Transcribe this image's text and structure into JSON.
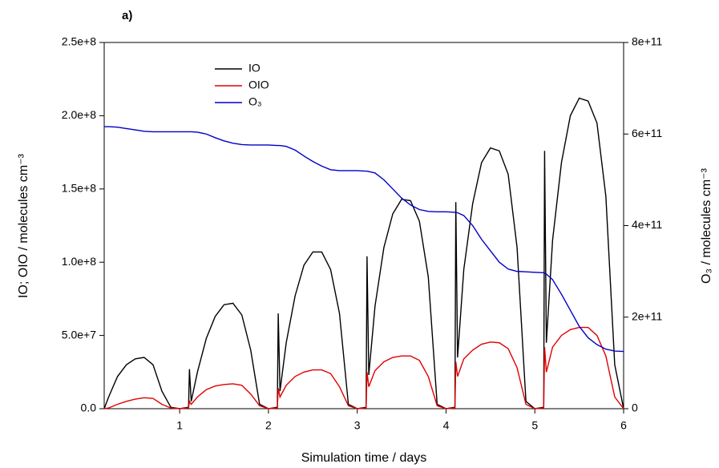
{
  "chart_data": {
    "type": "line",
    "title": "a)",
    "x_label": "Simulation time / days",
    "y_label": "IO; OIO / molecules cm⁻³",
    "y2_label": "O₃ / molecules cm⁻³",
    "xlim": [
      0.15,
      6
    ],
    "xticks": [
      1,
      2,
      3,
      4,
      5,
      6
    ],
    "ylim": [
      0,
      250000000
    ],
    "yticks": [
      {
        "value": 0,
        "label": "0.0"
      },
      {
        "value": 50000000,
        "label": "5.0e+7"
      },
      {
        "value": 100000000,
        "label": "1.0e+8"
      },
      {
        "value": 150000000,
        "label": "1.5e+8"
      },
      {
        "value": 200000000,
        "label": "2.0e+8"
      },
      {
        "value": 250000000,
        "label": "2.5e+8"
      }
    ],
    "y2lim": [
      0,
      800000000000
    ],
    "y2ticks": [
      0,
      {
        "value": 200000000000,
        "label": "2e+11"
      },
      {
        "value": 400000000000,
        "label": "4e+11"
      },
      {
        "value": 600000000000,
        "label": "6e+11"
      },
      {
        "value": 800000000000,
        "label": "8e+11"
      }
    ],
    "x": [
      0.15,
      0.2,
      0.3,
      0.4,
      0.5,
      0.6,
      0.7,
      0.8,
      0.9,
      1.0,
      1.1,
      1.11,
      1.13,
      1.2,
      1.3,
      1.4,
      1.5,
      1.6,
      1.7,
      1.8,
      1.9,
      2.0,
      2.1,
      2.11,
      2.13,
      2.2,
      2.3,
      2.4,
      2.5,
      2.6,
      2.7,
      2.8,
      2.9,
      3.0,
      3.1,
      3.11,
      3.13,
      3.2,
      3.3,
      3.4,
      3.5,
      3.6,
      3.7,
      3.8,
      3.9,
      4.0,
      4.1,
      4.11,
      4.13,
      4.2,
      4.3,
      4.4,
      4.5,
      4.6,
      4.7,
      4.8,
      4.9,
      5.0,
      5.1,
      5.11,
      5.13,
      5.2,
      5.3,
      5.4,
      5.5,
      5.6,
      5.7,
      5.8,
      5.9,
      6.0
    ],
    "series": [
      {
        "name": "IO",
        "color": "#000000",
        "values": [
          0,
          8000000.0,
          22000000.0,
          30000000.0,
          34000000.0,
          35000000.0,
          30000000.0,
          12000000.0,
          1000000.0,
          0,
          1000000.0,
          27000000.0,
          5000000.0,
          25000000.0,
          48000000.0,
          63000000.0,
          71000000.0,
          72000000.0,
          64000000.0,
          40000000.0,
          3000000.0,
          0,
          1000000.0,
          65000000.0,
          12000000.0,
          45000000.0,
          77000000.0,
          98000000.0,
          107000000.0,
          107000000.0,
          95000000.0,
          65000000.0,
          3000000.0,
          0,
          1000000.0,
          104000000.0,
          23000000.0,
          70000000.0,
          110000000.0,
          133000000.0,
          143000000.0,
          142000000.0,
          128000000.0,
          90000000.0,
          3000000.0,
          0,
          1000000.0,
          141000000.0,
          35000000.0,
          95000000.0,
          140000000.0,
          168000000.0,
          178000000.0,
          176000000.0,
          160000000.0,
          110000000.0,
          5000000.0,
          0,
          1000000.0,
          176000000.0,
          45000000.0,
          115000000.0,
          168000000.0,
          200000000.0,
          212000000.0,
          210000000.0,
          195000000.0,
          145000000.0,
          30000000.0,
          0
        ]
      },
      {
        "name": "OIO",
        "color": "#e00000",
        "values": [
          0,
          500000.0,
          3000000.0,
          5000000.0,
          6500000.0,
          7500000.0,
          7000000.0,
          3000000.0,
          500000.0,
          0,
          500000.0,
          5000000.0,
          3000000.0,
          8000000.0,
          13000000.0,
          15500000.0,
          16500000.0,
          17000000.0,
          16000000.0,
          10000000.0,
          2000000.0,
          0,
          500000.0,
          14000000.0,
          8000000.0,
          16000000.0,
          22000000.0,
          25000000.0,
          26500000.0,
          26500000.0,
          24000000.0,
          15000000.0,
          2000000.0,
          0,
          500000.0,
          25000000.0,
          15000000.0,
          26000000.0,
          32000000.0,
          35000000.0,
          36000000.0,
          36000000.0,
          33000000.0,
          22000000.0,
          2000000.0,
          0,
          500000.0,
          32000000.0,
          22000000.0,
          34000000.0,
          40000000.0,
          44000000.0,
          45500000.0,
          45000000.0,
          41000000.0,
          28000000.0,
          3000000.0,
          0,
          500000.0,
          42000000.0,
          25000000.0,
          42000000.0,
          50000000.0,
          54000000.0,
          55500000.0,
          55500000.0,
          50000000.0,
          36000000.0,
          8000000.0,
          0
        ]
      },
      {
        "name": "O₃",
        "color": "#0000c8",
        "axis": "y2",
        "values": [
          616000000000.0,
          616000000000.0,
          615000000000.0,
          612000000000.0,
          609000000000.0,
          606000000000.0,
          605000000000.0,
          605000000000.0,
          605000000000.0,
          605000000000.0,
          605000000000.0,
          605000000000.0,
          605000000000.0,
          604000000000.0,
          600000000000.0,
          592000000000.0,
          585000000000.0,
          580000000000.0,
          577000000000.0,
          576000000000.0,
          576000000000.0,
          576000000000.0,
          575000000000.0,
          575000000000.0,
          575000000000.0,
          573000000000.0,
          565000000000.0,
          552000000000.0,
          540000000000.0,
          530000000000.0,
          522000000000.0,
          520000000000.0,
          520000000000.0,
          520000000000.0,
          519000000000.0,
          519000000000.0,
          518000000000.0,
          515000000000.0,
          500000000000.0,
          480000000000.0,
          460000000000.0,
          445000000000.0,
          435000000000.0,
          431000000000.0,
          430000000000.0,
          430000000000.0,
          429000000000.0,
          429000000000.0,
          428000000000.0,
          422000000000.0,
          400000000000.0,
          370000000000.0,
          345000000000.0,
          320000000000.0,
          305000000000.0,
          300000000000.0,
          299000000000.0,
          298000000000.0,
          297000000000.0,
          296000000000.0,
          294000000000.0,
          282000000000.0,
          250000000000.0,
          215000000000.0,
          180000000000.0,
          155000000000.0,
          140000000000.0,
          130000000000.0,
          126000000000.0,
          125000000000.0
        ]
      }
    ]
  }
}
